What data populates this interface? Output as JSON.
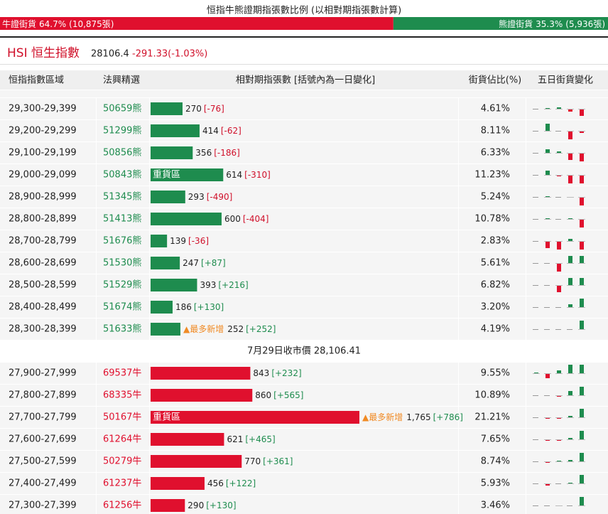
{
  "header": {
    "title": "恒指牛熊證期指張數比例 (以相對期指張數計算)",
    "bull": {
      "label": "牛證街貨",
      "pct": {
        "value": 64.7,
        "label": "64.7%"
      },
      "count": "(10,875張)",
      "color": "#e0102e"
    },
    "bear": {
      "label": "熊證街貨",
      "pct": {
        "value": 35.3,
        "label": "35.3%"
      },
      "count": "(5,936張)",
      "color": "#1e8c4e"
    }
  },
  "index": {
    "name": "HSI 恒生指數",
    "price": "28106.4",
    "change": "-291.33(-1.03%)"
  },
  "columns": [
    "恒指指數區域",
    "法興精選",
    "相對期指張數 [括號內為一日變化]",
    "街貨佔比(%)",
    "五日街貨變化"
  ],
  "bear_rows": [
    {
      "range": "29,300-29,399",
      "code": "50659熊",
      "contracts": 270,
      "change": "[-76]",
      "share": "4.61%",
      "five_day": [
        0,
        1,
        2,
        -4,
        -10
      ]
    },
    {
      "range": "29,200-29,299",
      "code": "51299熊",
      "contracts": 414,
      "change": "[-62]",
      "share": "8.11%",
      "five_day": [
        0,
        10,
        0,
        -12,
        -3
      ]
    },
    {
      "range": "29,100-29,199",
      "code": "50856熊",
      "contracts": 356,
      "change": "[-186]",
      "share": "6.33%",
      "five_day": [
        0,
        5,
        2,
        -10,
        -12
      ]
    },
    {
      "range": "29,000-29,099",
      "code": "50843熊",
      "contracts": 614,
      "change": "[-310]",
      "share": "11.23%",
      "tag": "重貨區",
      "five_day": [
        0,
        6,
        -2,
        -12,
        -12
      ]
    },
    {
      "range": "28,900-28,999",
      "code": "51345熊",
      "contracts": 293,
      "change": "[-490]",
      "share": "5.24%",
      "five_day": [
        0,
        1,
        0,
        -1,
        -12
      ]
    },
    {
      "range": "28,800-28,899",
      "code": "51413熊",
      "contracts": 600,
      "change": "[-404]",
      "share": "10.78%",
      "five_day": [
        0,
        1,
        0,
        1,
        -12
      ]
    },
    {
      "range": "28,700-28,799",
      "code": "51676熊",
      "contracts": 139,
      "change": "[-36]",
      "share": "2.83%",
      "five_day": [
        0,
        -10,
        -12,
        3,
        -12
      ]
    },
    {
      "range": "28,600-28,699",
      "code": "51530熊",
      "contracts": 247,
      "change": "[+87]",
      "share": "5.61%",
      "five_day": [
        0,
        0,
        -12,
        10,
        10
      ]
    },
    {
      "range": "28,500-28,599",
      "code": "51529熊",
      "contracts": 393,
      "change": "[+216]",
      "share": "6.82%",
      "five_day": [
        0,
        0,
        -10,
        10,
        10
      ]
    },
    {
      "range": "28,400-28,499",
      "code": "51674熊",
      "contracts": 186,
      "change": "[+130]",
      "share": "3.20%",
      "five_day": [
        0,
        0,
        0,
        4,
        12
      ]
    },
    {
      "range": "28,300-28,399",
      "code": "51633熊",
      "contracts": 252,
      "change": "[+252]",
      "share": "4.19%",
      "note": "▲最多新增",
      "five_day": [
        0,
        0,
        0,
        0,
        12
      ]
    }
  ],
  "close_note": "7月29日收市價 28,106.41",
  "bull_rows": [
    {
      "range": "27,900-27,999",
      "code": "69537牛",
      "contracts": 843,
      "change": "[+232]",
      "share": "9.55%",
      "five_day": [
        1,
        -7,
        4,
        12,
        12
      ]
    },
    {
      "range": "27,800-27,899",
      "code": "68335牛",
      "contracts": 860,
      "change": "[+565]",
      "share": "10.89%",
      "five_day": [
        0,
        0,
        -2,
        6,
        12
      ]
    },
    {
      "range": "27,700-27,799",
      "code": "50167牛",
      "contracts": {
        "value": 1765,
        "label": "1,765"
      },
      "change": "[+786]",
      "share": "21.21%",
      "tag": "重貨區",
      "note": "▲最多新增",
      "five_day": [
        0,
        -2,
        -2,
        2,
        12
      ]
    },
    {
      "range": "27,600-27,699",
      "code": "61264牛",
      "contracts": 621,
      "change": "[+465]",
      "share": "7.65%",
      "five_day": [
        0,
        -2,
        -2,
        2,
        12
      ]
    },
    {
      "range": "27,500-27,599",
      "code": "50279牛",
      "contracts": 770,
      "change": "[+361]",
      "share": "8.74%",
      "five_day": [
        0,
        -2,
        1,
        2,
        12
      ]
    },
    {
      "range": "27,400-27,499",
      "code": "61237牛",
      "contracts": 456,
      "change": "[+122]",
      "share": "5.93%",
      "five_day": [
        0,
        -3,
        0,
        1,
        12
      ]
    },
    {
      "range": "27,300-27,399",
      "code": "61256牛",
      "contracts": 290,
      "change": "[+130]",
      "share": "3.46%",
      "five_day": [
        0,
        0,
        -1,
        0,
        12
      ]
    }
  ]
}
